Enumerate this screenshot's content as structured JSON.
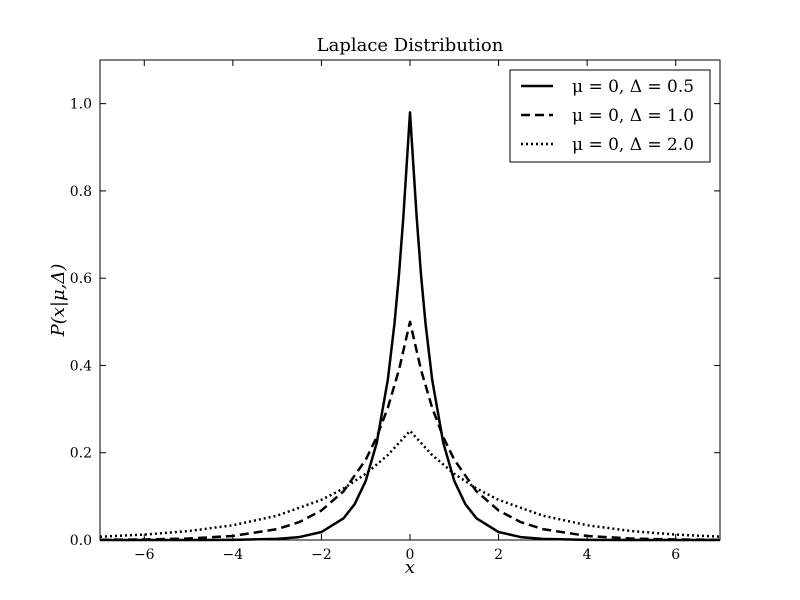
{
  "chart_data": {
    "type": "line",
    "title": "Laplace Distribution",
    "xlabel": "x",
    "ylabel": "P(x|μ,Δ)",
    "xlim": [
      -7,
      7
    ],
    "ylim": [
      0,
      1.1
    ],
    "xticks": [
      -6,
      -4,
      -2,
      0,
      2,
      4,
      6
    ],
    "xtick_labels": [
      "−6",
      "−4",
      "−2",
      "0",
      "2",
      "4",
      "6"
    ],
    "yticks": [
      0.0,
      0.2,
      0.4,
      0.6,
      0.8,
      1.0
    ],
    "ytick_labels": [
      "0.0",
      "0.2",
      "0.4",
      "0.6",
      "0.8",
      "1.0"
    ],
    "grid": false,
    "legend_position": "top-right",
    "series": [
      {
        "name": "μ = 0,  Δ = 0.5",
        "line_style": "solid",
        "x": [
          -7,
          -6,
          -5,
          -4,
          -3,
          -2.5,
          -2,
          -1.5,
          -1.25,
          -1,
          -0.75,
          -0.5,
          -0.35,
          -0.25,
          -0.15,
          -0.08,
          0,
          0.08,
          0.15,
          0.25,
          0.35,
          0.5,
          0.75,
          1,
          1.25,
          1.5,
          2,
          2.5,
          3,
          4,
          5,
          6,
          7
        ],
        "y": [
          0.0,
          0.0,
          0.0,
          0.0003,
          0.0025,
          0.0067,
          0.0183,
          0.0498,
          0.0821,
          0.1353,
          0.2231,
          0.3679,
          0.4966,
          0.6065,
          0.7408,
          0.8521,
          0.98,
          0.8521,
          0.7408,
          0.6065,
          0.4966,
          0.3679,
          0.2231,
          0.1353,
          0.0821,
          0.0498,
          0.0183,
          0.0067,
          0.0025,
          0.0003,
          0.0,
          0.0,
          0.0
        ]
      },
      {
        "name": "μ = 0,  Δ = 1.0",
        "line_style": "dashed",
        "x": [
          -7,
          -6,
          -5,
          -4,
          -3,
          -2.5,
          -2,
          -1.5,
          -1,
          -0.75,
          -0.5,
          -0.25,
          0,
          0.25,
          0.5,
          0.75,
          1,
          1.5,
          2,
          2.5,
          3,
          4,
          5,
          6,
          7
        ],
        "y": [
          0.0005,
          0.0012,
          0.0034,
          0.0092,
          0.0249,
          0.041,
          0.0677,
          0.1116,
          0.1839,
          0.2362,
          0.3033,
          0.3894,
          0.5,
          0.3894,
          0.3033,
          0.2362,
          0.1839,
          0.1116,
          0.0677,
          0.041,
          0.0249,
          0.0092,
          0.0034,
          0.0012,
          0.0005
        ]
      },
      {
        "name": "μ = 0,  Δ = 2.0",
        "line_style": "dotted",
        "x": [
          -7,
          -6,
          -5,
          -4,
          -3,
          -2,
          -1.5,
          -1,
          -0.5,
          0,
          0.5,
          1,
          1.5,
          2,
          3,
          4,
          5,
          6,
          7
        ],
        "y": [
          0.0076,
          0.0124,
          0.0205,
          0.0338,
          0.0558,
          0.092,
          0.1181,
          0.1516,
          0.1947,
          0.25,
          0.1947,
          0.1516,
          0.1181,
          0.092,
          0.0558,
          0.0338,
          0.0205,
          0.0124,
          0.0076
        ]
      }
    ]
  }
}
